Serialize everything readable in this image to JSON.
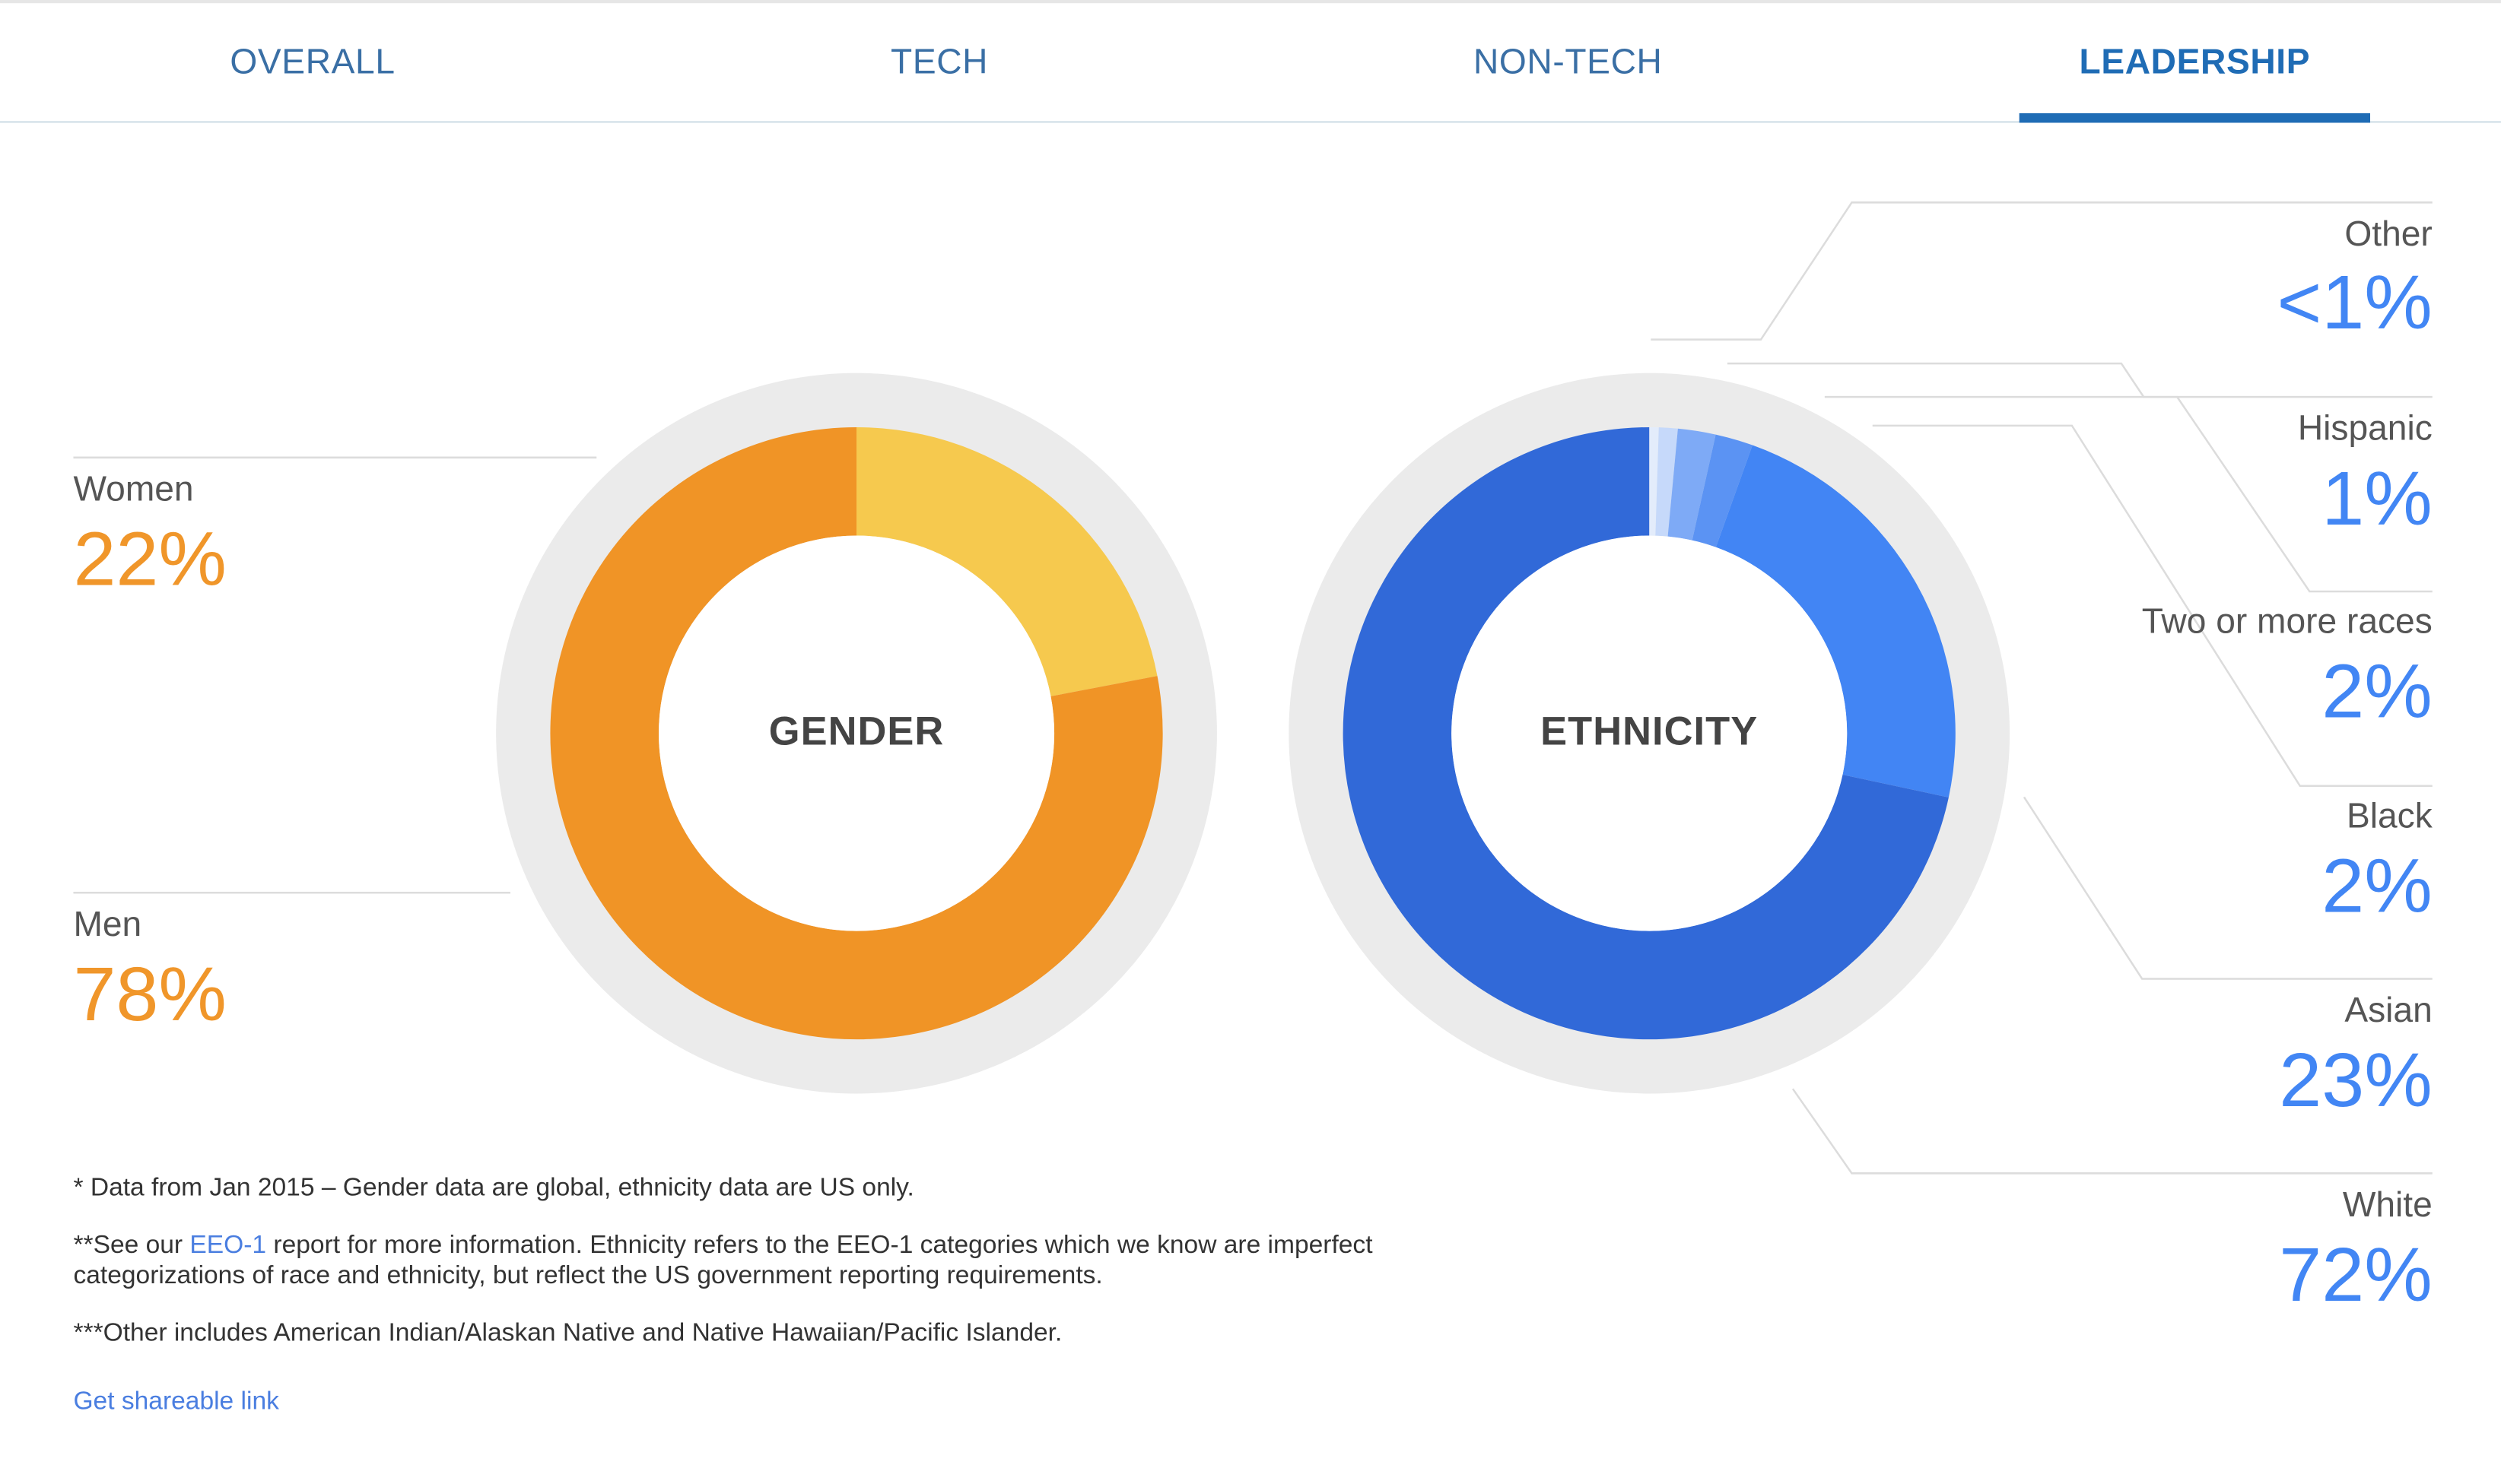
{
  "tabs": [
    {
      "label": "OVERALL",
      "active": false
    },
    {
      "label": "TECH",
      "active": false
    },
    {
      "label": "NON-TECH",
      "active": false
    },
    {
      "label": "LEADERSHIP",
      "active": true
    }
  ],
  "gender": {
    "center_label": "GENDER",
    "women": {
      "label": "Women",
      "value": "22%"
    },
    "men": {
      "label": "Men",
      "value": "78%"
    }
  },
  "ethnicity": {
    "center_label": "ETHNICITY",
    "other": {
      "label": "Other",
      "value": "<1%"
    },
    "hispanic": {
      "label": "Hispanic",
      "value": "1%"
    },
    "two_or_more": {
      "label": "Two or more races",
      "value": "2%"
    },
    "black": {
      "label": "Black",
      "value": "2%"
    },
    "asian": {
      "label": "Asian",
      "value": "23%"
    },
    "white": {
      "label": "White",
      "value": "72%"
    }
  },
  "notes": {
    "note1": "* Data from Jan 2015 – Gender data are global, ethnicity data are US only.",
    "note2_prefix": "**See our ",
    "note2_link": "EEO-1",
    "note2_suffix": " report for more information. Ethnicity refers to the EEO-1 categories which we know are imperfect categorizations of race and ethnicity, but reflect the US government reporting requirements.",
    "note3": "***Other includes American Indian/Alaskan Native and Native Hawaiian/Pacific Islander."
  },
  "share_link": "Get shareable link",
  "colors": {
    "gender_women": "#f6c94e",
    "gender_men": "#f09426",
    "eth_other": "#e3ecfb",
    "eth_hispanic": "#c6d9fa",
    "eth_two_or_more": "#7eaaf6",
    "eth_black": "#5b93f3",
    "eth_asian": "#4285f4",
    "eth_white": "#3169d8",
    "ring_bg": "#ebebeb",
    "accent": "#1f6cb5"
  },
  "chart_data": [
    {
      "type": "pie",
      "title": "GENDER",
      "categories": [
        "Women",
        "Men"
      ],
      "values": [
        22,
        78
      ]
    },
    {
      "type": "pie",
      "title": "ETHNICITY",
      "categories": [
        "Other",
        "Hispanic",
        "Two or more races",
        "Black",
        "Asian",
        "White"
      ],
      "values": [
        0.5,
        1,
        2,
        2,
        23,
        72
      ]
    }
  ]
}
